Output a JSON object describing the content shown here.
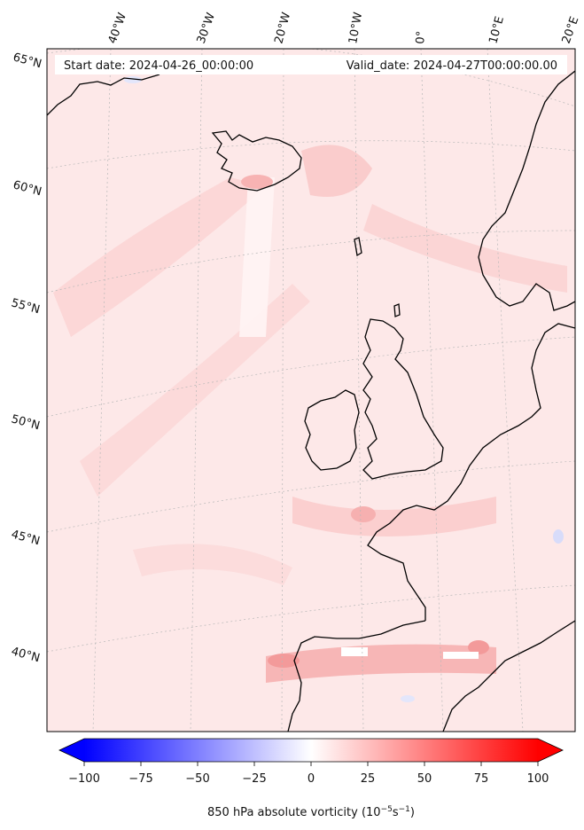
{
  "header": {
    "start_date": "Start date: 2024-04-26_00:00:00",
    "valid_date": "Valid_date: 2024-04-27T00:00:00.00"
  },
  "longitude_labels": [
    "40°W",
    "30°W",
    "20°W",
    "10°W",
    "0°",
    "10°E",
    "20°E"
  ],
  "latitude_labels": [
    "65°N",
    "60°N",
    "55°N",
    "50°N",
    "45°N",
    "40°N"
  ],
  "colorbar": {
    "ticks": [
      "−100",
      "−75",
      "−50",
      "−25",
      "0",
      "25",
      "50",
      "75",
      "100"
    ],
    "label_main": "850 hPa absolute vorticity (10",
    "label_exp1": "−5",
    "label_mid": "s",
    "label_exp2": "−1",
    "label_end": ")",
    "min_color": "#0000ff",
    "mid_color": "#ffffff",
    "max_color": "#ff0000"
  }
}
